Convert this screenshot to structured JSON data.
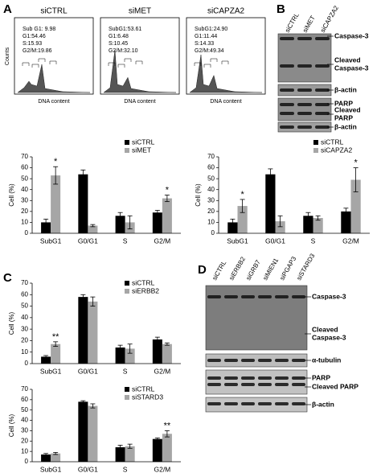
{
  "panel_letters": [
    "A",
    "B",
    "C",
    "D"
  ],
  "flow": [
    {
      "title": "siCTRL",
      "stats": [
        "Sub G1: 9.98",
        "G1:54.46",
        "S:15.93",
        "G2/M:19.86"
      ],
      "xlabel": "DNA content"
    },
    {
      "title": "siMET",
      "stats": [
        "SubG1:53.61",
        "G1:6.48",
        "S:10.45",
        "G2/M:32.10"
      ],
      "xlabel": "DNA content"
    },
    {
      "title": "siCAPZA2",
      "stats": [
        "SubG1:24.90",
        "G1:11.44",
        "S:14.33",
        "G2/M:49.34"
      ],
      "xlabel": "DNA content"
    }
  ],
  "flow_ylabel": "Counts",
  "blot_B": {
    "lanes": [
      "siCTRL",
      "siMET",
      "siCAPZA2"
    ],
    "labels": [
      [
        "Caspase-3"
      ],
      [
        "Cleaved",
        "Caspase-3"
      ],
      [
        "β-actin"
      ],
      [
        "PARP"
      ],
      [
        "Cleaved",
        "PARP"
      ],
      [
        "β-actin"
      ]
    ]
  },
  "blot_D": {
    "lanes": [
      "siCTRL",
      "siERBB2",
      "siGRB7",
      "siMIEN1",
      "siPGAP3",
      "siSTARD3"
    ],
    "labels": [
      [
        "Caspase-3"
      ],
      [
        "Cleaved",
        "Caspase-3"
      ],
      [
        "α-tubulin"
      ],
      [
        "PARP"
      ],
      [
        "Cleaved PARP"
      ],
      [
        "β-actin"
      ]
    ]
  },
  "chart_data": [
    {
      "type": "bar",
      "ylabel": "Cell (%)",
      "categories": [
        "SubG1",
        "G0/G1",
        "S",
        "G2/M"
      ],
      "ylim": [
        0,
        70
      ],
      "yticks": [
        0,
        10,
        20,
        30,
        40,
        50,
        60,
        70
      ],
      "legend": "upper right",
      "series": [
        {
          "name": "siCTRL",
          "color": "#000000",
          "values": [
            10,
            54,
            16,
            19
          ],
          "errors": [
            3,
            4,
            3,
            2
          ],
          "marks": [
            null,
            null,
            null,
            null
          ]
        },
        {
          "name": "siMET",
          "color": "#a6a6a6",
          "values": [
            53,
            7,
            10,
            32
          ],
          "errors": [
            8,
            1,
            6,
            3
          ],
          "marks": [
            "*",
            null,
            null,
            "*"
          ]
        }
      ]
    },
    {
      "type": "bar",
      "ylabel": "Cell (%)",
      "categories": [
        "SubG1",
        "G0/G1",
        "S",
        "G2/M"
      ],
      "ylim": [
        0,
        70
      ],
      "yticks": [
        0,
        10,
        20,
        30,
        40,
        50,
        60,
        70
      ],
      "legend": "upper right",
      "series": [
        {
          "name": "siCTRL",
          "color": "#000000",
          "values": [
            10,
            54,
            16,
            20
          ],
          "errors": [
            3,
            5,
            3,
            3
          ],
          "marks": [
            null,
            null,
            null,
            null
          ]
        },
        {
          "name": "siCAPZA2",
          "color": "#a6a6a6",
          "values": [
            25,
            11,
            14,
            49
          ],
          "errors": [
            6,
            5,
            2,
            11
          ],
          "marks": [
            "*",
            null,
            null,
            "*"
          ]
        }
      ]
    },
    {
      "type": "bar",
      "ylabel": "Cell (%)",
      "categories": [
        "SubG1",
        "G0/G1",
        "S",
        "G2/M"
      ],
      "ylim": [
        0,
        70
      ],
      "yticks": [
        0,
        10,
        20,
        30,
        40,
        50,
        60,
        70
      ],
      "legend": "upper right",
      "series": [
        {
          "name": "siCTRL",
          "color": "#000000",
          "values": [
            6,
            58,
            14,
            21
          ],
          "errors": [
            1,
            2,
            2,
            2
          ],
          "marks": [
            null,
            null,
            null,
            null
          ]
        },
        {
          "name": "siERBB2",
          "color": "#a6a6a6",
          "values": [
            17,
            54,
            13,
            17
          ],
          "errors": [
            2,
            4,
            4,
            1
          ],
          "marks": [
            "**",
            null,
            null,
            null
          ]
        }
      ]
    },
    {
      "type": "bar",
      "ylabel": "Cell (%)",
      "categories": [
        "SubG1",
        "G0/G1",
        "S",
        "G2/M"
      ],
      "ylim": [
        0,
        70
      ],
      "yticks": [
        0,
        10,
        20,
        30,
        40,
        50,
        60,
        70
      ],
      "legend": "upper right",
      "series": [
        {
          "name": "siCTRL",
          "color": "#000000",
          "values": [
            7,
            58,
            14,
            22
          ],
          "errors": [
            1,
            1,
            2,
            1
          ],
          "marks": [
            null,
            null,
            null,
            null
          ]
        },
        {
          "name": "siSTARD3",
          "color": "#a6a6a6",
          "values": [
            8,
            54,
            15,
            27
          ],
          "errors": [
            1,
            2,
            2,
            3
          ],
          "marks": [
            null,
            null,
            null,
            "**"
          ]
        }
      ]
    }
  ]
}
